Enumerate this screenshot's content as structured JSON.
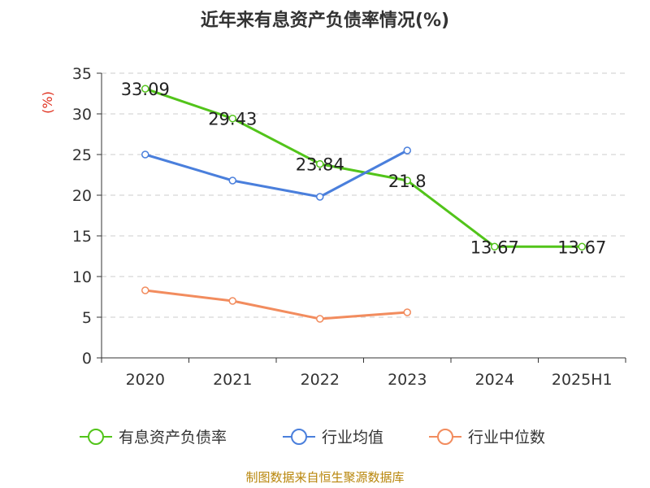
{
  "title": "近年来有息资产负债率情况(%)",
  "source": "制图数据来自恒生聚源数据库",
  "chart_data": {
    "type": "line",
    "title": "近年来有息资产负债率情况(%)",
    "y_unit_label": "(%)",
    "categories": [
      "2020",
      "2021",
      "2022",
      "2023",
      "2024",
      "2025H1"
    ],
    "ylim": [
      0,
      35
    ],
    "y_ticks": [
      0,
      5,
      10,
      15,
      20,
      25,
      30,
      35
    ],
    "grid": true,
    "legend_position": "bottom",
    "series": [
      {
        "name": "有息资产负债率",
        "color": "#52c41a",
        "values": [
          33.09,
          29.43,
          23.84,
          21.8,
          13.67,
          13.67
        ],
        "labels": [
          "33.09",
          "29.43",
          "23.84",
          "21.8",
          "13.67",
          "13.67"
        ]
      },
      {
        "name": "行业均值",
        "color": "#4a7fdc",
        "values": [
          25.0,
          21.8,
          19.8,
          25.5,
          null,
          null
        ]
      },
      {
        "name": "行业中位数",
        "color": "#f28c5e",
        "values": [
          8.3,
          7.0,
          4.8,
          5.6,
          null,
          null
        ]
      }
    ]
  }
}
